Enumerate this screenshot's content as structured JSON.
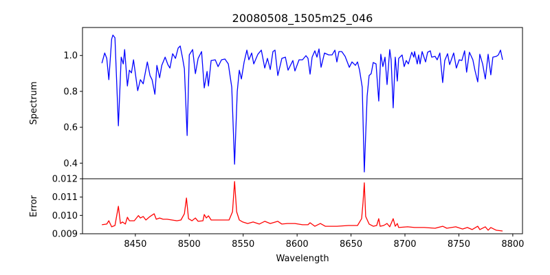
{
  "chart_data": [
    {
      "type": "line",
      "title": "20080508_1505m25_046",
      "xlabel": "",
      "ylabel": "Spectrum",
      "xlim": [
        8401,
        8809
      ],
      "ylim": [
        0.313,
        1.156
      ],
      "yticks": [
        0.4,
        0.6,
        0.8,
        1.0
      ],
      "ytick_labels": [
        "0.4",
        "0.6",
        "0.8",
        "1.0"
      ],
      "grid": false,
      "series": [
        {
          "name": "Spectrum",
          "color": "#0000ff",
          "points": [
            [
              8419.0,
              0.957
            ],
            [
              8421.6,
              1.014
            ],
            [
              8423.5,
              0.984
            ],
            [
              8425.4,
              0.865
            ],
            [
              8428.0,
              1.091
            ],
            [
              8429.2,
              1.114
            ],
            [
              8431.1,
              1.099
            ],
            [
              8434.3,
              0.608
            ],
            [
              8436.9,
              0.991
            ],
            [
              8438.8,
              0.953
            ],
            [
              8440.1,
              1.033
            ],
            [
              8442.6,
              0.83
            ],
            [
              8444.5,
              0.918
            ],
            [
              8446.4,
              0.903
            ],
            [
              8448.3,
              0.976
            ],
            [
              8452.2,
              0.804
            ],
            [
              8454.7,
              0.865
            ],
            [
              8457.3,
              0.842
            ],
            [
              8461.1,
              0.964
            ],
            [
              8463.6,
              0.888
            ],
            [
              8465.5,
              0.865
            ],
            [
              8468.1,
              0.784
            ],
            [
              8470.0,
              0.945
            ],
            [
              8472.5,
              0.876
            ],
            [
              8474.5,
              0.945
            ],
            [
              8477.6,
              0.991
            ],
            [
              8480.2,
              0.949
            ],
            [
              8482.1,
              0.93
            ],
            [
              8484.6,
              1.01
            ],
            [
              8487.2,
              0.984
            ],
            [
              8489.7,
              1.041
            ],
            [
              8491.6,
              1.053
            ],
            [
              8493.6,
              0.991
            ],
            [
              8495.5,
              0.926
            ],
            [
              8498.0,
              0.554
            ],
            [
              8500.0,
              1.003
            ],
            [
              8503.1,
              1.033
            ],
            [
              8505.7,
              0.899
            ],
            [
              8508.2,
              0.984
            ],
            [
              8511.4,
              1.022
            ],
            [
              8513.9,
              0.819
            ],
            [
              8516.5,
              0.911
            ],
            [
              8517.8,
              0.83
            ],
            [
              8520.3,
              0.972
            ],
            [
              8524.1,
              0.976
            ],
            [
              8526.7,
              0.938
            ],
            [
              8529.9,
              0.976
            ],
            [
              8533.1,
              0.98
            ],
            [
              8536.2,
              0.953
            ],
            [
              8539.4,
              0.823
            ],
            [
              8542.0,
              0.394
            ],
            [
              8544.5,
              0.8
            ],
            [
              8546.4,
              0.918
            ],
            [
              8548.3,
              0.869
            ],
            [
              8550.9,
              0.964
            ],
            [
              8553.4,
              1.03
            ],
            [
              8555.3,
              0.976
            ],
            [
              8557.9,
              1.014
            ],
            [
              8559.8,
              0.953
            ],
            [
              8563.6,
              1.007
            ],
            [
              8566.8,
              1.03
            ],
            [
              8570.0,
              0.93
            ],
            [
              8572.5,
              0.984
            ],
            [
              8575.1,
              0.922
            ],
            [
              8577.6,
              1.022
            ],
            [
              8579.5,
              1.03
            ],
            [
              8582.1,
              0.888
            ],
            [
              8585.9,
              0.984
            ],
            [
              8589.1,
              0.991
            ],
            [
              8591.6,
              0.918
            ],
            [
              8596.1,
              0.972
            ],
            [
              8598.0,
              0.914
            ],
            [
              8601.8,
              0.976
            ],
            [
              8605.0,
              0.976
            ],
            [
              8608.2,
              0.999
            ],
            [
              8610.1,
              0.984
            ],
            [
              8612.0,
              0.896
            ],
            [
              8613.9,
              0.991
            ],
            [
              8616.5,
              1.026
            ],
            [
              8618.4,
              0.991
            ],
            [
              8620.3,
              1.037
            ],
            [
              8622.2,
              0.934
            ],
            [
              8625.4,
              1.014
            ],
            [
              8629.2,
              1.003
            ],
            [
              8632.4,
              1.003
            ],
            [
              8635.0,
              1.03
            ],
            [
              8636.9,
              0.964
            ],
            [
              8638.8,
              1.022
            ],
            [
              8641.4,
              1.022
            ],
            [
              8644.5,
              0.995
            ],
            [
              8648.4,
              0.934
            ],
            [
              8650.9,
              0.964
            ],
            [
              8654.1,
              0.945
            ],
            [
              8656.0,
              0.964
            ],
            [
              8657.9,
              0.918
            ],
            [
              8660.4,
              0.823
            ],
            [
              8662.3,
              0.351
            ],
            [
              8664.9,
              0.773
            ],
            [
              8666.8,
              0.888
            ],
            [
              8668.7,
              0.899
            ],
            [
              8670.6,
              0.961
            ],
            [
              8673.2,
              0.953
            ],
            [
              8675.7,
              0.746
            ],
            [
              8677.6,
              1.007
            ],
            [
              8679.5,
              0.938
            ],
            [
              8681.5,
              0.991
            ],
            [
              8683.4,
              0.838
            ],
            [
              8685.9,
              1.033
            ],
            [
              8687.2,
              0.976
            ],
            [
              8689.1,
              0.708
            ],
            [
              8691.0,
              0.991
            ],
            [
              8692.9,
              0.857
            ],
            [
              8694.2,
              0.984
            ],
            [
              8697.4,
              1.003
            ],
            [
              8699.3,
              0.938
            ],
            [
              8701.2,
              0.972
            ],
            [
              8703.2,
              0.953
            ],
            [
              8706.3,
              1.018
            ],
            [
              8708.3,
              0.991
            ],
            [
              8708.9,
              1.022
            ],
            [
              8711.4,
              0.953
            ],
            [
              8712.7,
              1.003
            ],
            [
              8714.0,
              0.953
            ],
            [
              8715.9,
              1.022
            ],
            [
              8719.1,
              0.964
            ],
            [
              8721.0,
              1.018
            ],
            [
              8723.5,
              1.026
            ],
            [
              8724.8,
              0.991
            ],
            [
              8728.0,
              0.995
            ],
            [
              8729.9,
              0.976
            ],
            [
              8732.4,
              1.014
            ],
            [
              8735.0,
              0.849
            ],
            [
              8736.9,
              0.972
            ],
            [
              8739.5,
              1.01
            ],
            [
              8741.4,
              0.949
            ],
            [
              8745.2,
              1.014
            ],
            [
              8747.7,
              0.93
            ],
            [
              8750.3,
              0.976
            ],
            [
              8752.8,
              0.972
            ],
            [
              8755.3,
              1.026
            ],
            [
              8757.2,
              0.907
            ],
            [
              8759.8,
              1.018
            ],
            [
              8763.0,
              0.976
            ],
            [
              8764.9,
              0.918
            ],
            [
              8767.5,
              0.853
            ],
            [
              8769.4,
              1.007
            ],
            [
              8772.0,
              0.953
            ],
            [
              8774.5,
              0.869
            ],
            [
              8777.1,
              1.007
            ],
            [
              8779.6,
              0.892
            ],
            [
              8781.5,
              0.991
            ],
            [
              8784.7,
              0.995
            ],
            [
              8786.6,
              1.003
            ],
            [
              8788.6,
              1.03
            ],
            [
              8790.5,
              0.976
            ]
          ]
        }
      ]
    },
    {
      "type": "line",
      "xlabel": "Wavelength",
      "ylabel": "Error",
      "xlim": [
        8401,
        8809
      ],
      "ylim": [
        0.009,
        0.012
      ],
      "xticks": [
        8450,
        8500,
        8550,
        8600,
        8650,
        8700,
        8750,
        8800
      ],
      "xtick_labels": [
        "8450",
        "8500",
        "8550",
        "8600",
        "8650",
        "8700",
        "8750",
        "8800"
      ],
      "yticks": [
        0.009,
        0.01,
        0.011,
        0.012
      ],
      "ytick_labels": [
        "0.009",
        "0.010",
        "0.011",
        "0.012"
      ],
      "grid": false,
      "series": [
        {
          "name": "Error",
          "color": "#ff0000",
          "points": [
            [
              8419.0,
              0.00949
            ],
            [
              8423.5,
              0.00953
            ],
            [
              8425.4,
              0.00971
            ],
            [
              8428.0,
              0.00938
            ],
            [
              8431.1,
              0.00945
            ],
            [
              8434.3,
              0.0105
            ],
            [
              8436.2,
              0.00956
            ],
            [
              8438.1,
              0.00964
            ],
            [
              8440.7,
              0.00953
            ],
            [
              8442.6,
              0.0099
            ],
            [
              8444.5,
              0.00971
            ],
            [
              8449.0,
              0.00971
            ],
            [
              8452.8,
              0.00999
            ],
            [
              8454.7,
              0.00986
            ],
            [
              8457.3,
              0.00994
            ],
            [
              8459.8,
              0.00975
            ],
            [
              8463.6,
              0.00994
            ],
            [
              8467.4,
              0.01009
            ],
            [
              8469.4,
              0.00979
            ],
            [
              8472.5,
              0.00986
            ],
            [
              8475.7,
              0.00979
            ],
            [
              8479.5,
              0.00979
            ],
            [
              8484.0,
              0.00975
            ],
            [
              8488.5,
              0.00971
            ],
            [
              8492.3,
              0.00975
            ],
            [
              8495.5,
              0.01009
            ],
            [
              8497.4,
              0.01095
            ],
            [
              8499.3,
              0.00982
            ],
            [
              8502.5,
              0.00971
            ],
            [
              8505.7,
              0.00986
            ],
            [
              8508.2,
              0.00968
            ],
            [
              8512.7,
              0.00971
            ],
            [
              8513.9,
              0.01005
            ],
            [
              8515.8,
              0.00986
            ],
            [
              8517.8,
              0.00998
            ],
            [
              8520.3,
              0.00975
            ],
            [
              8524.1,
              0.00975
            ],
            [
              8528.6,
              0.00975
            ],
            [
              8533.1,
              0.00975
            ],
            [
              8536.9,
              0.00975
            ],
            [
              8540.1,
              0.0102
            ],
            [
              8542.0,
              0.01185
            ],
            [
              8543.9,
              0.0102
            ],
            [
              8546.4,
              0.00975
            ],
            [
              8549.6,
              0.00964
            ],
            [
              8554.1,
              0.00956
            ],
            [
              8559.2,
              0.00964
            ],
            [
              8564.9,
              0.00953
            ],
            [
              8570.0,
              0.00968
            ],
            [
              8575.1,
              0.00956
            ],
            [
              8582.1,
              0.00968
            ],
            [
              8585.9,
              0.00953
            ],
            [
              8591.0,
              0.00956
            ],
            [
              8598.0,
              0.00956
            ],
            [
              8605.0,
              0.00949
            ],
            [
              8610.1,
              0.00949
            ],
            [
              8612.0,
              0.0096
            ],
            [
              8616.5,
              0.00941
            ],
            [
              8621.6,
              0.00956
            ],
            [
              8626.1,
              0.00941
            ],
            [
              8636.9,
              0.00941
            ],
            [
              8647.7,
              0.00945
            ],
            [
              8656.0,
              0.00945
            ],
            [
              8659.8,
              0.00982
            ],
            [
              8661.1,
              0.01069
            ],
            [
              8662.3,
              0.01178
            ],
            [
              8663.6,
              0.00994
            ],
            [
              8666.8,
              0.00953
            ],
            [
              8670.6,
              0.00941
            ],
            [
              8673.8,
              0.00945
            ],
            [
              8675.7,
              0.00982
            ],
            [
              8677.0,
              0.00941
            ],
            [
              8680.2,
              0.00945
            ],
            [
              8683.4,
              0.00956
            ],
            [
              8685.9,
              0.00938
            ],
            [
              8689.1,
              0.00982
            ],
            [
              8691.0,
              0.00941
            ],
            [
              8692.9,
              0.00956
            ],
            [
              8694.2,
              0.00934
            ],
            [
              8702.5,
              0.00938
            ],
            [
              8708.9,
              0.00934
            ],
            [
              8717.8,
              0.00934
            ],
            [
              8728.0,
              0.0093
            ],
            [
              8735.0,
              0.00941
            ],
            [
              8738.8,
              0.0093
            ],
            [
              8747.1,
              0.00938
            ],
            [
              8753.4,
              0.00926
            ],
            [
              8757.9,
              0.00934
            ],
            [
              8762.3,
              0.00923
            ],
            [
              8767.5,
              0.00941
            ],
            [
              8769.4,
              0.00923
            ],
            [
              8774.5,
              0.00938
            ],
            [
              8777.1,
              0.00919
            ],
            [
              8779.6,
              0.00934
            ],
            [
              8784.7,
              0.00919
            ],
            [
              8790.5,
              0.00915
            ]
          ]
        }
      ]
    }
  ]
}
